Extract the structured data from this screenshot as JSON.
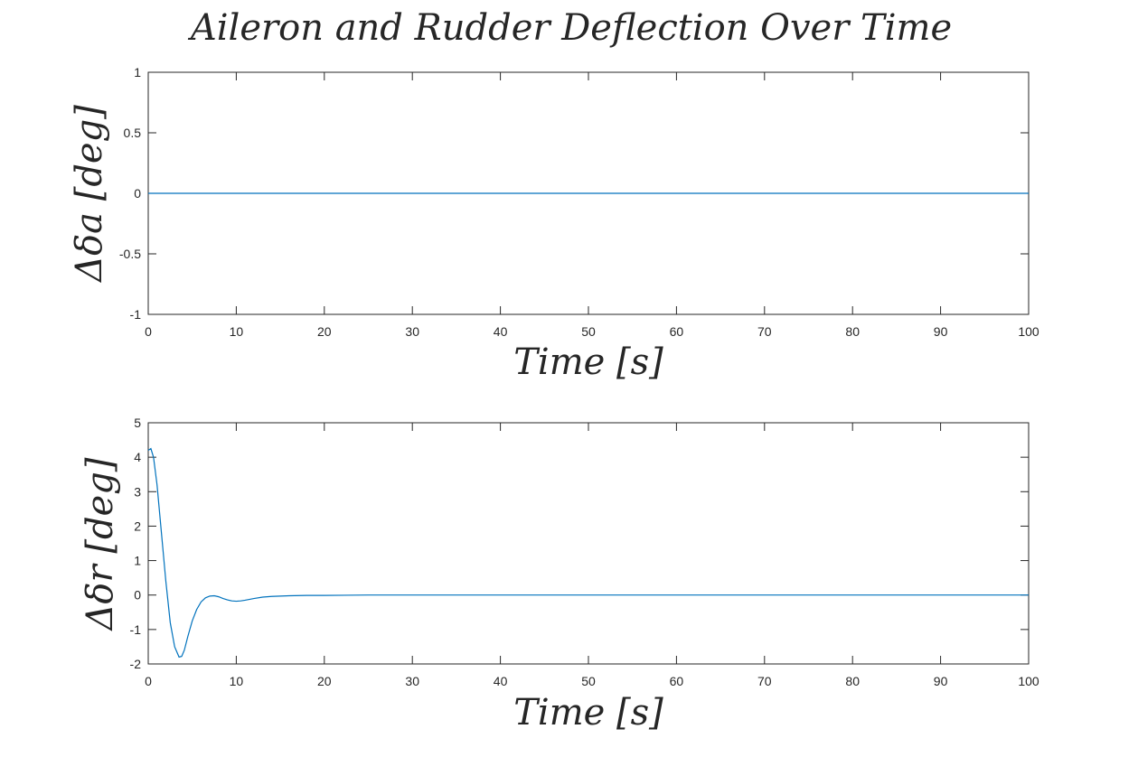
{
  "figure": {
    "title": "Aileron and Rudder Deflection Over Time"
  },
  "colors": {
    "series": "#0072BD",
    "axes": "#262626",
    "background": "#ffffff"
  },
  "chart_data": [
    {
      "type": "line",
      "title": "",
      "xlabel": "Time [s]",
      "ylabel": "Δδa [deg]",
      "xlim": [
        0,
        100
      ],
      "ylim": [
        -1,
        1
      ],
      "x_ticks": [
        "0",
        "10",
        "20",
        "30",
        "40",
        "50",
        "60",
        "70",
        "80",
        "90",
        "100"
      ],
      "y_ticks": [
        "1",
        "0.5",
        "0",
        "-0.5",
        "-1"
      ],
      "grid": false,
      "series": [
        {
          "x": [
            0,
            100
          ],
          "y": [
            0,
            0
          ]
        }
      ]
    },
    {
      "type": "line",
      "title": "",
      "xlabel": "Time [s]",
      "ylabel": "Δδr [deg]",
      "xlim": [
        0,
        100
      ],
      "ylim": [
        -2,
        5
      ],
      "x_ticks": [
        "0",
        "10",
        "20",
        "30",
        "40",
        "50",
        "60",
        "70",
        "80",
        "90",
        "100"
      ],
      "y_ticks": [
        "5",
        "4",
        "3",
        "2",
        "1",
        "0",
        "-1",
        "-2"
      ],
      "grid": false,
      "series": [
        {
          "x": [
            0,
            0.3,
            0.6,
            1.0,
            1.5,
            2.0,
            2.5,
            3.0,
            3.5,
            3.8,
            4.1,
            4.5,
            5.0,
            5.5,
            6.0,
            6.5,
            7.0,
            7.5,
            8.0,
            8.5,
            9.0,
            9.5,
            10.0,
            10.5,
            11.0,
            12.0,
            13.0,
            14.0,
            15.0,
            16.0,
            18.0,
            20.0,
            25.0,
            30.0,
            40.0,
            50.0,
            60.0,
            80.0,
            100.0
          ],
          "y": [
            4.2,
            4.25,
            4.0,
            3.2,
            1.8,
            0.4,
            -0.8,
            -1.5,
            -1.8,
            -1.78,
            -1.6,
            -1.2,
            -0.75,
            -0.42,
            -0.2,
            -0.08,
            -0.03,
            -0.02,
            -0.05,
            -0.1,
            -0.14,
            -0.17,
            -0.18,
            -0.17,
            -0.15,
            -0.1,
            -0.06,
            -0.04,
            -0.03,
            -0.02,
            -0.01,
            -0.01,
            0,
            0,
            0,
            0,
            0,
            0,
            0
          ]
        }
      ]
    }
  ]
}
